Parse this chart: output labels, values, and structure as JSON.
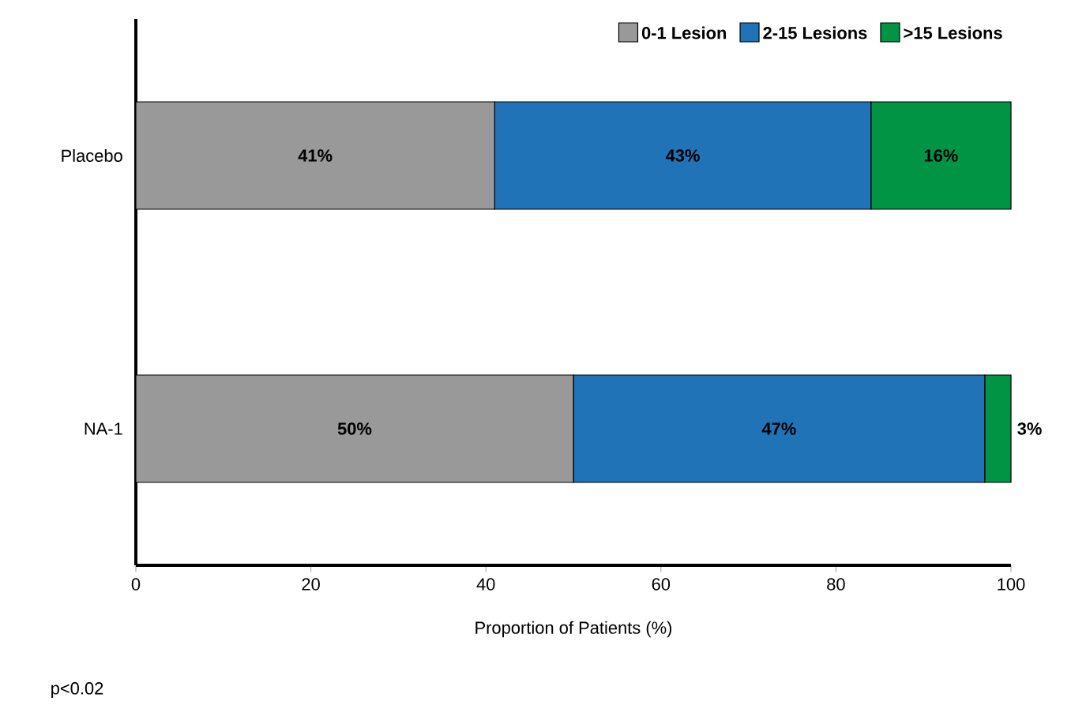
{
  "chart_data": {
    "type": "bar",
    "orientation": "horizontal",
    "stacked": true,
    "categories": [
      "Placebo",
      "NA-1"
    ],
    "series": [
      {
        "name": "0-1 Lesion",
        "color": "#999999",
        "values": [
          41,
          50
        ],
        "value_labels": [
          "41%",
          "50%"
        ]
      },
      {
        "name": "2-15 Lesions",
        "color": "#2173b8",
        "values": [
          43,
          47
        ],
        "value_labels": [
          "43%",
          "47%"
        ]
      },
      {
        "name": ">15 Lesions",
        "color": "#009444",
        "values": [
          16,
          3
        ],
        "value_labels": [
          "16%",
          "3%"
        ]
      }
    ],
    "xlabel": "Proportion of Patients (%)",
    "xlim": [
      0,
      100
    ],
    "xticks": [
      0,
      20,
      40,
      60,
      80,
      100
    ],
    "legend": "top right",
    "grid": false,
    "annotations": [
      "p<0.02"
    ]
  }
}
